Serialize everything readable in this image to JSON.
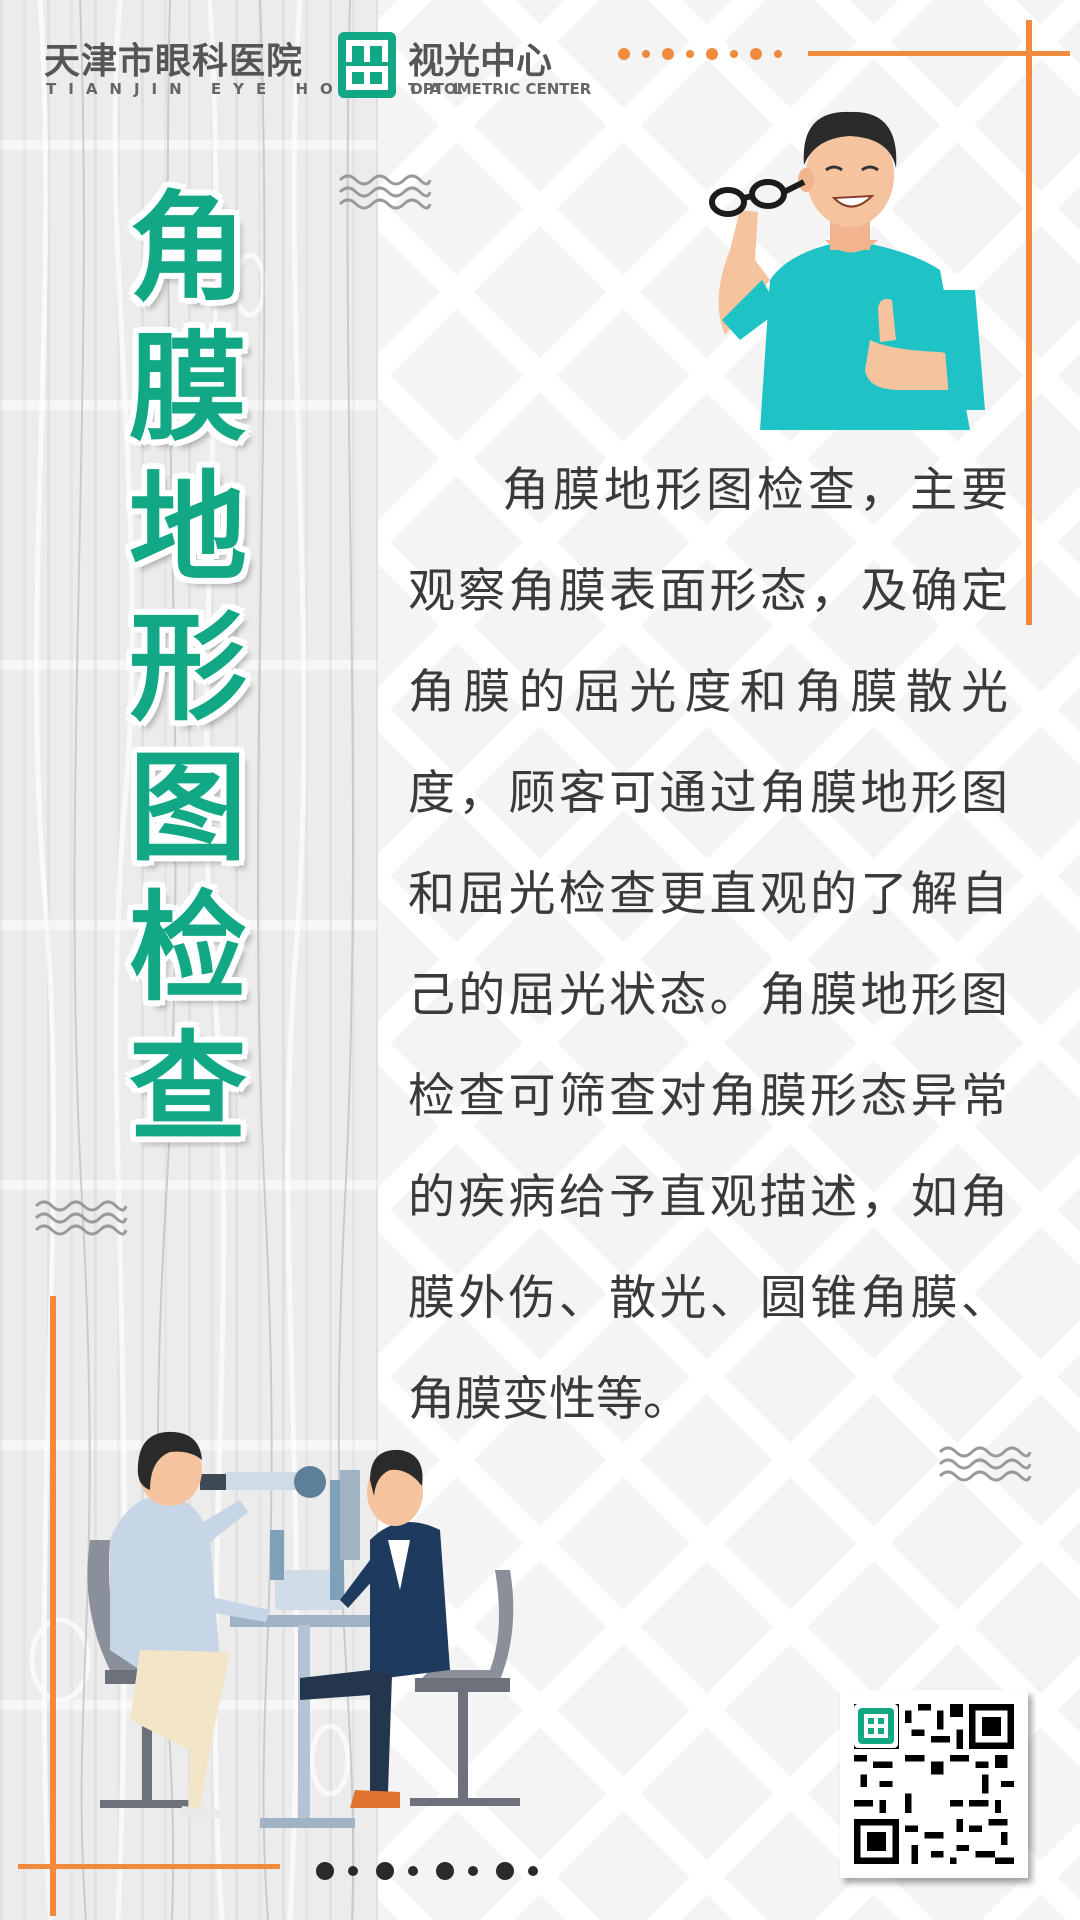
{
  "header": {
    "hospital_name": "天津市眼科医院",
    "hospital_name_en": "TIANJIN EYE HOSPITAL",
    "center_name": "视光中心",
    "center_name_en": "OPTOMETRIC CENTER",
    "logo_icon": "optometric-center-logo"
  },
  "title": {
    "chars": [
      "角",
      "膜",
      "地",
      "形",
      "图",
      "检",
      "查"
    ],
    "color": "#13a885"
  },
  "body": {
    "text": "角膜地形图检查，主要观察角膜表面形态，及确定角膜的屈光度和角膜散光度，顾客可通过角膜地形图和屈光检查更直观的了解自己的屈光状态。角膜地形图检查可筛查对角膜形态异常的疾病给予直观描述，如角膜外伤、散光、圆锥角膜、角膜变性等。"
  },
  "colors": {
    "accent_orange": "#f08a3c",
    "brand_green": "#13a885",
    "text": "#3a3a3a"
  },
  "illustrations": {
    "top": "man-holding-glasses-thumbs-up",
    "bottom": "doctor-eye-exam-slit-lamp",
    "qr": "qr-code"
  }
}
